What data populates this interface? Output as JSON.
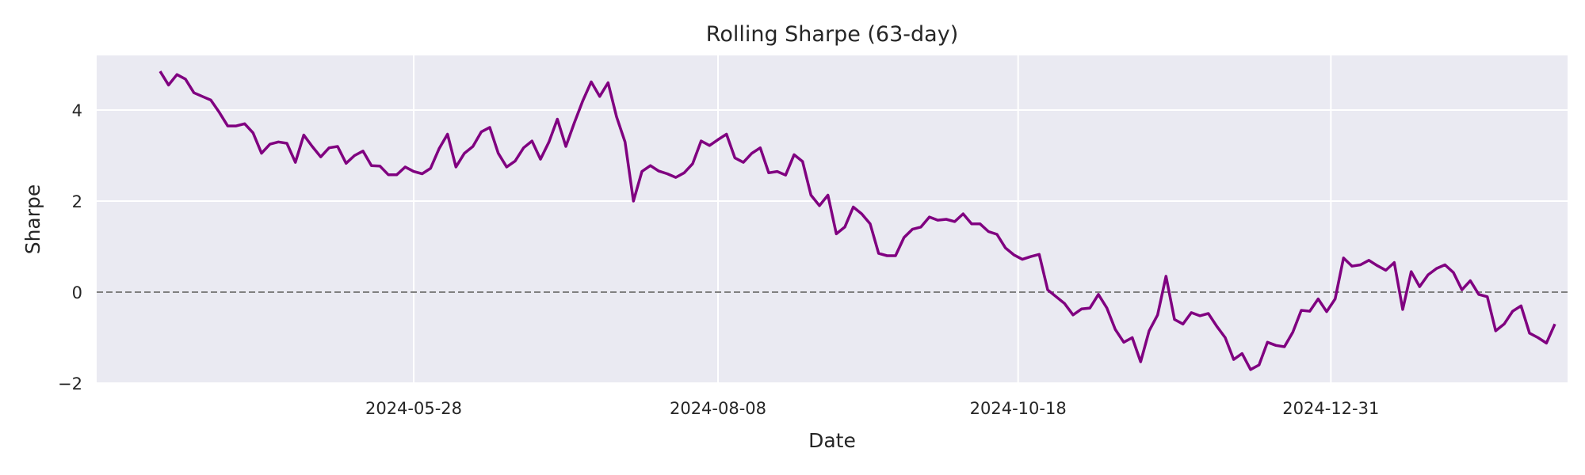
{
  "chart_data": {
    "type": "line",
    "title": "Rolling Sharpe (63-day)",
    "xlabel": "Date",
    "ylabel": "Sharpe",
    "xlim": [
      "2024-03-14",
      "2025-02-25"
    ],
    "ylim": [
      -2,
      5.2
    ],
    "yticks": [
      -2,
      0,
      2,
      4
    ],
    "xticks": [
      "2024-05-28",
      "2024-08-08",
      "2024-10-18",
      "2024-12-31"
    ],
    "grid": true,
    "reference_line": {
      "y": 0,
      "style": "dashed",
      "color": "#808080"
    },
    "series": [
      {
        "color": "#800080",
        "points": [
          [
            "2024-03-29",
            4.85
          ],
          [
            "2024-03-31",
            4.55
          ],
          [
            "2024-04-02",
            4.78
          ],
          [
            "2024-04-04",
            4.68
          ],
          [
            "2024-04-06",
            4.38
          ],
          [
            "2024-04-08",
            4.3
          ],
          [
            "2024-04-10",
            4.22
          ],
          [
            "2024-04-12",
            3.95
          ],
          [
            "2024-04-14",
            3.65
          ],
          [
            "2024-04-16",
            3.65
          ],
          [
            "2024-04-18",
            3.7
          ],
          [
            "2024-04-20",
            3.5
          ],
          [
            "2024-04-22",
            3.05
          ],
          [
            "2024-04-24",
            3.25
          ],
          [
            "2024-04-26",
            3.3
          ],
          [
            "2024-04-28",
            3.27
          ],
          [
            "2024-04-30",
            2.85
          ],
          [
            "2024-05-02",
            3.45
          ],
          [
            "2024-05-04",
            3.2
          ],
          [
            "2024-05-06",
            2.97
          ],
          [
            "2024-05-08",
            3.17
          ],
          [
            "2024-05-10",
            3.2
          ],
          [
            "2024-05-12",
            2.83
          ],
          [
            "2024-05-14",
            3.0
          ],
          [
            "2024-05-16",
            3.1
          ],
          [
            "2024-05-18",
            2.78
          ],
          [
            "2024-05-20",
            2.77
          ],
          [
            "2024-05-22",
            2.58
          ],
          [
            "2024-05-24",
            2.58
          ],
          [
            "2024-05-26",
            2.75
          ],
          [
            "2024-05-28",
            2.65
          ],
          [
            "2024-05-30",
            2.6
          ],
          [
            "2024-06-01",
            2.72
          ],
          [
            "2024-06-03",
            3.15
          ],
          [
            "2024-06-05",
            3.47
          ],
          [
            "2024-06-07",
            2.75
          ],
          [
            "2024-06-09",
            3.05
          ],
          [
            "2024-06-11",
            3.2
          ],
          [
            "2024-06-13",
            3.52
          ],
          [
            "2024-06-15",
            3.62
          ],
          [
            "2024-06-17",
            3.05
          ],
          [
            "2024-06-19",
            2.75
          ],
          [
            "2024-06-21",
            2.88
          ],
          [
            "2024-06-23",
            3.17
          ],
          [
            "2024-06-25",
            3.32
          ],
          [
            "2024-06-27",
            2.92
          ],
          [
            "2024-06-29",
            3.3
          ],
          [
            "2024-07-01",
            3.8
          ],
          [
            "2024-07-03",
            3.2
          ],
          [
            "2024-07-05",
            3.72
          ],
          [
            "2024-07-07",
            4.2
          ],
          [
            "2024-07-09",
            4.62
          ],
          [
            "2024-07-11",
            4.3
          ],
          [
            "2024-07-13",
            4.6
          ],
          [
            "2024-07-15",
            3.85
          ],
          [
            "2024-07-17",
            3.3
          ],
          [
            "2024-07-19",
            2.0
          ],
          [
            "2024-07-21",
            2.65
          ],
          [
            "2024-07-23",
            2.78
          ],
          [
            "2024-07-25",
            2.66
          ],
          [
            "2024-07-27",
            2.6
          ],
          [
            "2024-07-29",
            2.52
          ],
          [
            "2024-07-31",
            2.62
          ],
          [
            "2024-08-02",
            2.82
          ],
          [
            "2024-08-04",
            3.32
          ],
          [
            "2024-08-06",
            3.22
          ],
          [
            "2024-08-08",
            3.35
          ],
          [
            "2024-08-10",
            3.47
          ],
          [
            "2024-08-12",
            2.95
          ],
          [
            "2024-08-14",
            2.85
          ],
          [
            "2024-08-16",
            3.05
          ],
          [
            "2024-08-18",
            3.17
          ],
          [
            "2024-08-20",
            2.62
          ],
          [
            "2024-08-22",
            2.65
          ],
          [
            "2024-08-24",
            2.57
          ],
          [
            "2024-08-26",
            3.02
          ],
          [
            "2024-08-28",
            2.87
          ],
          [
            "2024-08-30",
            2.13
          ],
          [
            "2024-09-01",
            1.9
          ],
          [
            "2024-09-03",
            2.13
          ],
          [
            "2024-09-05",
            1.28
          ],
          [
            "2024-09-07",
            1.43
          ],
          [
            "2024-09-09",
            1.87
          ],
          [
            "2024-09-11",
            1.72
          ],
          [
            "2024-09-13",
            1.5
          ],
          [
            "2024-09-15",
            0.85
          ],
          [
            "2024-09-17",
            0.8
          ],
          [
            "2024-09-19",
            0.8
          ],
          [
            "2024-09-21",
            1.2
          ],
          [
            "2024-09-23",
            1.38
          ],
          [
            "2024-09-25",
            1.43
          ],
          [
            "2024-09-27",
            1.65
          ],
          [
            "2024-09-29",
            1.58
          ],
          [
            "2024-10-01",
            1.6
          ],
          [
            "2024-10-03",
            1.55
          ],
          [
            "2024-10-05",
            1.72
          ],
          [
            "2024-10-07",
            1.5
          ],
          [
            "2024-10-09",
            1.5
          ],
          [
            "2024-10-11",
            1.33
          ],
          [
            "2024-10-13",
            1.27
          ],
          [
            "2024-10-15",
            0.97
          ],
          [
            "2024-10-17",
            0.82
          ],
          [
            "2024-10-19",
            0.72
          ],
          [
            "2024-10-21",
            0.78
          ],
          [
            "2024-10-23",
            0.83
          ],
          [
            "2024-10-25",
            0.05
          ],
          [
            "2024-10-27",
            -0.1
          ],
          [
            "2024-10-29",
            -0.25
          ],
          [
            "2024-10-31",
            -0.5
          ],
          [
            "2024-11-02",
            -0.37
          ],
          [
            "2024-11-04",
            -0.35
          ],
          [
            "2024-11-06",
            -0.05
          ],
          [
            "2024-11-08",
            -0.35
          ],
          [
            "2024-11-10",
            -0.82
          ],
          [
            "2024-11-12",
            -1.1
          ],
          [
            "2024-11-14",
            -1.0
          ],
          [
            "2024-11-16",
            -1.53
          ],
          [
            "2024-11-18",
            -0.85
          ],
          [
            "2024-11-20",
            -0.5
          ],
          [
            "2024-11-22",
            0.35
          ],
          [
            "2024-11-24",
            -0.6
          ],
          [
            "2024-11-26",
            -0.7
          ],
          [
            "2024-11-28",
            -0.45
          ],
          [
            "2024-11-30",
            -0.52
          ],
          [
            "2024-12-02",
            -0.47
          ],
          [
            "2024-12-04",
            -0.75
          ],
          [
            "2024-12-06",
            -1.0
          ],
          [
            "2024-12-08",
            -1.48
          ],
          [
            "2024-12-10",
            -1.35
          ],
          [
            "2024-12-12",
            -1.7
          ],
          [
            "2024-12-14",
            -1.6
          ],
          [
            "2024-12-16",
            -1.1
          ],
          [
            "2024-12-18",
            -1.17
          ],
          [
            "2024-12-20",
            -1.2
          ],
          [
            "2024-12-22",
            -0.88
          ],
          [
            "2024-12-24",
            -0.4
          ],
          [
            "2024-12-26",
            -0.42
          ],
          [
            "2024-12-28",
            -0.15
          ],
          [
            "2024-12-30",
            -0.43
          ],
          [
            "2025-01-01",
            -0.15
          ],
          [
            "2025-01-03",
            0.75
          ],
          [
            "2025-01-05",
            0.57
          ],
          [
            "2025-01-07",
            0.6
          ],
          [
            "2025-01-09",
            0.7
          ],
          [
            "2025-01-11",
            0.58
          ],
          [
            "2025-01-13",
            0.48
          ],
          [
            "2025-01-15",
            0.65
          ],
          [
            "2025-01-17",
            -0.38
          ],
          [
            "2025-01-19",
            0.45
          ],
          [
            "2025-01-21",
            0.12
          ],
          [
            "2025-01-23",
            0.38
          ],
          [
            "2025-01-25",
            0.52
          ],
          [
            "2025-01-27",
            0.6
          ],
          [
            "2025-01-29",
            0.43
          ],
          [
            "2025-01-31",
            0.05
          ],
          [
            "2025-02-02",
            0.25
          ],
          [
            "2025-02-04",
            -0.05
          ],
          [
            "2025-02-06",
            -0.1
          ],
          [
            "2025-02-08",
            -0.85
          ],
          [
            "2025-02-10",
            -0.7
          ],
          [
            "2025-02-12",
            -0.42
          ],
          [
            "2025-02-14",
            -0.3
          ],
          [
            "2025-02-16",
            -0.9
          ],
          [
            "2025-02-18",
            -1.0
          ],
          [
            "2025-02-20",
            -1.12
          ],
          [
            "2025-02-22",
            -0.7
          ]
        ]
      }
    ]
  }
}
